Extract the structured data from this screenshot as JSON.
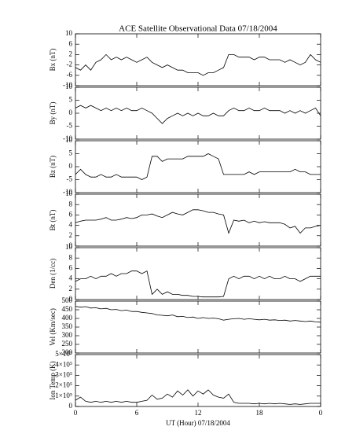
{
  "chart_data": [
    {
      "type": "line",
      "title": "ACE Satellite Observational Data   07/18/2004",
      "ylabel": "Bx (nT)",
      "x": [
        0,
        0.5,
        1,
        1.5,
        2,
        2.5,
        3,
        3.5,
        4,
        4.5,
        5,
        5.5,
        6,
        6.5,
        7,
        7.5,
        8,
        8.5,
        9,
        9.5,
        10,
        10.5,
        11,
        11.5,
        12,
        12.5,
        13,
        13.5,
        14,
        14.5,
        15,
        15.5,
        16,
        16.5,
        17,
        17.5,
        18,
        18.5,
        19,
        19.5,
        20,
        20.5,
        21,
        21.5,
        22,
        22.5,
        23,
        23.5,
        24
      ],
      "values": [
        -3,
        -4,
        -2,
        -4,
        -1,
        0,
        2,
        0,
        1,
        0,
        1,
        0,
        -1,
        0,
        1,
        -1,
        -2,
        -3,
        -2,
        -3,
        -4,
        -4,
        -5,
        -5,
        -5,
        -6,
        -5,
        -5,
        -4,
        -3,
        2,
        2,
        1,
        1,
        1,
        0,
        1,
        1,
        0,
        0,
        0,
        -1,
        0,
        -1,
        -2,
        -1,
        2,
        0,
        -1
      ],
      "xlim": [
        0,
        24
      ],
      "xticks": [
        0,
        6,
        12,
        18,
        {
          "value": 24,
          "label": "0"
        }
      ],
      "ylim": [
        -10,
        10
      ],
      "yticks": [
        10,
        6,
        2,
        -2,
        -6,
        -10
      ]
    },
    {
      "type": "line",
      "ylabel": "By (nT)",
      "x": [
        0,
        0.5,
        1,
        1.5,
        2,
        2.5,
        3,
        3.5,
        4,
        4.5,
        5,
        5.5,
        6,
        6.5,
        7,
        7.5,
        8,
        8.5,
        9,
        9.5,
        10,
        10.5,
        11,
        11.5,
        12,
        12.5,
        13,
        13.5,
        14,
        14.5,
        15,
        15.5,
        16,
        16.5,
        17,
        17.5,
        18,
        18.5,
        19,
        19.5,
        20,
        20.5,
        21,
        21.5,
        22,
        22.5,
        23,
        23.5,
        24
      ],
      "values": [
        2,
        3,
        2,
        3,
        2,
        1,
        2,
        1,
        2,
        1,
        2,
        1,
        1,
        2,
        1,
        0,
        -2,
        -4,
        -2,
        -1,
        0,
        -1,
        0,
        -1,
        0,
        -1,
        -1,
        0,
        -1,
        -1,
        1,
        2,
        1,
        1,
        2,
        1,
        1,
        2,
        1,
        1,
        1,
        0,
        1,
        0,
        1,
        0,
        1,
        2,
        -1
      ],
      "xlim": [
        0,
        24
      ],
      "xticks": [
        0,
        6,
        12,
        18,
        {
          "value": 24,
          "label": "0"
        }
      ],
      "ylim": [
        -10,
        10
      ],
      "yticks": [
        10,
        5,
        0,
        -5,
        -10
      ]
    },
    {
      "type": "line",
      "ylabel": "Bz (nT)",
      "x": [
        0,
        0.5,
        1,
        1.5,
        2,
        2.5,
        3,
        3.5,
        4,
        4.5,
        5,
        5.5,
        6,
        6.5,
        7,
        7.5,
        8,
        8.5,
        9,
        9.5,
        10,
        10.5,
        11,
        11.5,
        12,
        12.5,
        13,
        13.5,
        14,
        14.5,
        15,
        15.5,
        16,
        16.5,
        17,
        17.5,
        18,
        18.5,
        19,
        19.5,
        20,
        20.5,
        21,
        21.5,
        22,
        22.5,
        23,
        23.5,
        24
      ],
      "values": [
        -3,
        -1,
        -3,
        -4,
        -4,
        -3,
        -4,
        -4,
        -3,
        -4,
        -4,
        -4,
        -4,
        -5,
        -4,
        4,
        4,
        2,
        3,
        3,
        3,
        3,
        4,
        4,
        4,
        4,
        5,
        4,
        3,
        -3,
        -3,
        -3,
        -3,
        -3,
        -2,
        -3,
        -2,
        -2,
        -2,
        -2,
        -2,
        -2,
        -2,
        -1,
        -2,
        -2,
        -3,
        -3,
        -3
      ],
      "xlim": [
        0,
        24
      ],
      "xticks": [
        0,
        6,
        12,
        18,
        {
          "value": 24,
          "label": "0"
        }
      ],
      "ylim": [
        -10,
        10
      ],
      "yticks": [
        10,
        5,
        0,
        -5,
        -10
      ]
    },
    {
      "type": "line",
      "ylabel": "Bt (nT)",
      "x": [
        0,
        0.5,
        1,
        1.5,
        2,
        2.5,
        3,
        3.5,
        4,
        4.5,
        5,
        5.5,
        6,
        6.5,
        7,
        7.5,
        8,
        8.5,
        9,
        9.5,
        10,
        10.5,
        11,
        11.5,
        12,
        12.5,
        13,
        13.5,
        14,
        14.5,
        15,
        15.5,
        16,
        16.5,
        17,
        17.5,
        18,
        18.5,
        19,
        19.5,
        20,
        20.5,
        21,
        21.5,
        22,
        22.5,
        23,
        23.5,
        24
      ],
      "values": [
        4.5,
        4.8,
        5,
        5,
        5,
        5.2,
        5.5,
        5,
        5,
        5.2,
        5.5,
        5.3,
        5.5,
        6,
        6,
        6.2,
        5.8,
        5.5,
        6,
        6.5,
        6.2,
        6,
        6.5,
        7,
        7,
        6.8,
        6.5,
        6.5,
        6.2,
        6,
        2.5,
        5,
        4.8,
        5,
        4.5,
        4.8,
        4.5,
        4.7,
        4.5,
        4.5,
        4.5,
        4.2,
        3.5,
        3.8,
        2.5,
        3.5,
        3.5,
        3.8,
        4
      ],
      "xlim": [
        0,
        24
      ],
      "xticks": [
        0,
        6,
        12,
        18,
        {
          "value": 24,
          "label": "0"
        }
      ],
      "ylim": [
        0,
        10
      ],
      "yticks": [
        10,
        8,
        6,
        4,
        2,
        0
      ]
    },
    {
      "type": "line",
      "ylabel": "Den (1/cc)",
      "x": [
        0,
        0.5,
        1,
        1.5,
        2,
        2.5,
        3,
        3.5,
        4,
        4.5,
        5,
        5.5,
        6,
        6.5,
        7,
        7.5,
        8,
        8.5,
        9,
        9.5,
        10,
        10.5,
        11,
        11.5,
        12,
        12.5,
        13,
        13.5,
        14,
        14.5,
        15,
        15.5,
        16,
        16.5,
        17,
        17.5,
        18,
        18.5,
        19,
        19.5,
        20,
        20.5,
        21,
        21.5,
        22,
        22.5,
        23,
        23.5,
        24
      ],
      "values": [
        3.5,
        4,
        4,
        4.5,
        4,
        4.5,
        4.5,
        5,
        4.5,
        5,
        5,
        5.5,
        5.5,
        5,
        5.5,
        1,
        2,
        1,
        1.5,
        1,
        1,
        0.8,
        0.8,
        0.6,
        0.6,
        0.5,
        0.5,
        0.5,
        0.5,
        0.6,
        4,
        4.5,
        4,
        4.5,
        4.5,
        4,
        4.5,
        4,
        4.5,
        4,
        4,
        4.5,
        4,
        4,
        3.5,
        4,
        4.5,
        4.5,
        4.5
      ],
      "xlim": [
        0,
        24
      ],
      "xticks": [
        0,
        6,
        12,
        18,
        {
          "value": 24,
          "label": "0"
        }
      ],
      "ylim": [
        0,
        10
      ],
      "yticks": [
        10,
        8,
        6,
        4,
        2,
        0
      ]
    },
    {
      "type": "line",
      "ylabel": "Vel (Km/sec)",
      "x": [
        0,
        0.5,
        1,
        1.5,
        2,
        2.5,
        3,
        3.5,
        4,
        4.5,
        5,
        5.5,
        6,
        6.5,
        7,
        7.5,
        8,
        8.5,
        9,
        9.5,
        10,
        10.5,
        11,
        11.5,
        12,
        12.5,
        13,
        13.5,
        14,
        14.5,
        15,
        15.5,
        16,
        16.5,
        17,
        17.5,
        18,
        18.5,
        19,
        19.5,
        20,
        20.5,
        21,
        21.5,
        22,
        22.5,
        23,
        23.5,
        24
      ],
      "values": [
        470,
        465,
        468,
        460,
        462,
        455,
        458,
        450,
        452,
        445,
        448,
        440,
        440,
        435,
        432,
        428,
        420,
        418,
        415,
        420,
        410,
        412,
        405,
        408,
        400,
        405,
        400,
        402,
        398,
        390,
        395,
        398,
        400,
        395,
        398,
        395,
        392,
        395,
        390,
        392,
        388,
        390,
        385,
        388,
        385,
        382,
        385,
        380,
        378
      ],
      "xlim": [
        0,
        24
      ],
      "xticks": [
        0,
        6,
        12,
        18,
        {
          "value": 24,
          "label": "0"
        }
      ],
      "ylim": [
        200,
        500
      ],
      "yticks": [
        500,
        450,
        400,
        350,
        300,
        250,
        200
      ]
    },
    {
      "type": "line",
      "ylabel": "Ion Temp (K)",
      "xlabel": "UT (Hour)   07/18/2004",
      "x": [
        0,
        0.5,
        1,
        1.5,
        2,
        2.5,
        3,
        3.5,
        4,
        4.5,
        5,
        5.5,
        6,
        6.5,
        7,
        7.5,
        8,
        8.5,
        9,
        9.5,
        10,
        10.5,
        11,
        11.5,
        12,
        12.5,
        13,
        13.5,
        14,
        14.5,
        15,
        15.5,
        16,
        16.5,
        17,
        17.5,
        18,
        18.5,
        19,
        19.5,
        20,
        20.5,
        21,
        21.5,
        22,
        22.5,
        23,
        23.5,
        24
      ],
      "values": [
        60000,
        90000,
        50000,
        40000,
        50000,
        40000,
        50000,
        40000,
        50000,
        40000,
        50000,
        40000,
        40000,
        50000,
        60000,
        110000,
        70000,
        80000,
        120000,
        90000,
        150000,
        110000,
        160000,
        100000,
        150000,
        120000,
        160000,
        110000,
        90000,
        80000,
        120000,
        40000,
        30000,
        30000,
        30000,
        25000,
        30000,
        25000,
        30000,
        25000,
        30000,
        25000,
        20000,
        25000,
        20000,
        25000,
        30000,
        30000,
        30000
      ],
      "xlim": [
        0,
        24
      ],
      "xticks": [
        0,
        6,
        12,
        18,
        {
          "value": 24,
          "label": "0"
        }
      ],
      "ylim": [
        0,
        500000
      ],
      "yticks": [
        {
          "value": 500000,
          "label": "5×10⁵"
        },
        {
          "value": 400000,
          "label": "4×10⁵"
        },
        {
          "value": 300000,
          "label": "3×10⁵"
        },
        {
          "value": 200000,
          "label": "2×10⁵"
        },
        {
          "value": 100000,
          "label": "1×10⁵"
        },
        0
      ]
    }
  ]
}
